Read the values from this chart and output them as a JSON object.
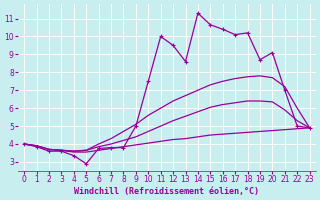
{
  "background_color": "#c8eef0",
  "grid_color": "#aadddd",
  "line_color": "#990099",
  "xlabel": "Windchill (Refroidissement éolien,°C)",
  "xlabel_fontsize": 6.0,
  "xlim": [
    -0.5,
    23.5
  ],
  "ylim": [
    2.5,
    11.8
  ],
  "yticks": [
    3,
    4,
    5,
    6,
    7,
    8,
    9,
    10,
    11
  ],
  "xticks": [
    0,
    1,
    2,
    3,
    4,
    5,
    6,
    7,
    8,
    9,
    10,
    11,
    12,
    13,
    14,
    15,
    16,
    17,
    18,
    19,
    20,
    21,
    22,
    23
  ],
  "tick_fontsize": 5.5,
  "jagged_x": [
    0,
    1,
    2,
    3,
    4,
    5,
    6,
    7,
    8,
    9,
    10,
    11,
    12,
    13,
    14,
    15,
    16,
    17,
    18,
    19,
    20,
    21,
    22,
    23
  ],
  "jagged_y": [
    4.0,
    3.85,
    3.6,
    3.6,
    3.35,
    2.9,
    3.75,
    3.8,
    3.8,
    5.0,
    7.5,
    10.0,
    9.5,
    8.6,
    11.3,
    10.65,
    10.4,
    10.1,
    10.2,
    8.7,
    9.1,
    7.0,
    5.0,
    4.9
  ],
  "upper_smooth_x": [
    0,
    1,
    2,
    3,
    4,
    5,
    6,
    7,
    8,
    9,
    10,
    11,
    12,
    13,
    14,
    15,
    16,
    17,
    18,
    19,
    20,
    21,
    22,
    23
  ],
  "upper_smooth_y": [
    4.0,
    3.9,
    3.7,
    3.65,
    3.6,
    3.65,
    4.0,
    4.3,
    4.7,
    5.1,
    5.6,
    6.0,
    6.4,
    6.7,
    7.0,
    7.3,
    7.5,
    7.65,
    7.75,
    7.8,
    7.7,
    7.2,
    6.0,
    4.9
  ],
  "mid_smooth_x": [
    0,
    1,
    2,
    3,
    4,
    5,
    6,
    7,
    8,
    9,
    10,
    11,
    12,
    13,
    14,
    15,
    16,
    17,
    18,
    19,
    20,
    21,
    22,
    23
  ],
  "mid_smooth_y": [
    4.0,
    3.9,
    3.7,
    3.65,
    3.6,
    3.65,
    3.85,
    4.0,
    4.2,
    4.4,
    4.7,
    5.0,
    5.3,
    5.55,
    5.8,
    6.05,
    6.2,
    6.3,
    6.4,
    6.4,
    6.35,
    5.9,
    5.3,
    4.9
  ],
  "lower_flat_x": [
    0,
    1,
    2,
    3,
    4,
    5,
    6,
    7,
    8,
    9,
    10,
    11,
    12,
    13,
    14,
    15,
    16,
    17,
    18,
    19,
    20,
    21,
    22,
    23
  ],
  "lower_flat_y": [
    4.0,
    3.9,
    3.7,
    3.65,
    3.55,
    3.55,
    3.65,
    3.75,
    3.85,
    3.95,
    4.05,
    4.15,
    4.25,
    4.3,
    4.4,
    4.5,
    4.55,
    4.6,
    4.65,
    4.7,
    4.75,
    4.8,
    4.85,
    4.9
  ]
}
